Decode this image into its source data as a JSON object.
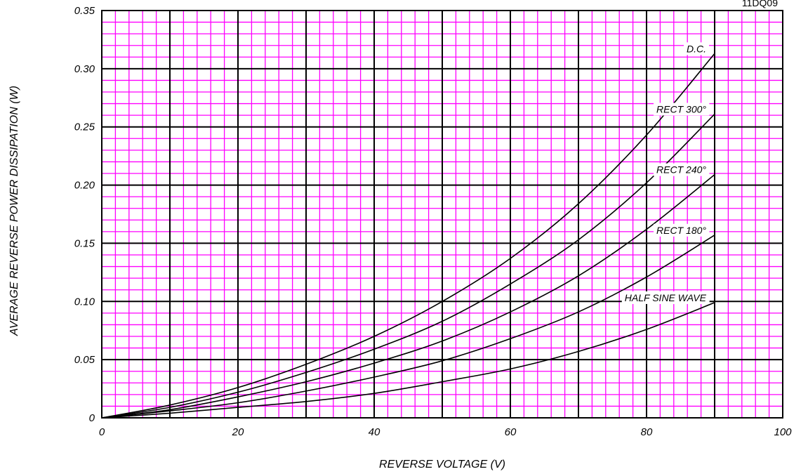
{
  "chart_data": {
    "type": "line",
    "title": "",
    "corner_label": "11DQ09",
    "xlabel": "REVERSE VOLTAGE (V)",
    "ylabel": "AVERAGE REVERSE POWER DISSIPATION (W)",
    "xlim": [
      0,
      100
    ],
    "ylim": [
      0,
      0.35
    ],
    "x_ticks": [
      0,
      20,
      40,
      60,
      80,
      100
    ],
    "x_tick_labels": [
      "0",
      "20",
      "40",
      "60",
      "80",
      "100"
    ],
    "y_ticks": [
      0,
      0.05,
      0.1,
      0.15,
      0.2,
      0.25,
      0.3,
      0.35
    ],
    "y_tick_labels": [
      "0",
      "0.05",
      "0.10",
      "0.15",
      "0.20",
      "0.25",
      "0.30",
      "0.35"
    ],
    "grid": true,
    "colors": {
      "minor_grid": "#ff00ff",
      "major_grid": "#000000",
      "curve": "#000000",
      "background": "#ffffff"
    },
    "series": [
      {
        "name": "D.C.",
        "x": [
          0,
          10,
          20,
          30,
          40,
          50,
          60,
          70,
          80,
          90
        ],
        "values": [
          0,
          0.011,
          0.026,
          0.046,
          0.07,
          0.1,
          0.137,
          0.184,
          0.243,
          0.313
        ]
      },
      {
        "name": "RECT 300°",
        "x": [
          0,
          10,
          20,
          30,
          40,
          50,
          60,
          70,
          80,
          90
        ],
        "values": [
          0,
          0.009,
          0.022,
          0.039,
          0.059,
          0.083,
          0.115,
          0.153,
          0.202,
          0.261
        ]
      },
      {
        "name": "RECT 240°",
        "x": [
          0,
          10,
          20,
          30,
          40,
          50,
          60,
          70,
          80,
          90
        ],
        "values": [
          0,
          0.007,
          0.018,
          0.031,
          0.047,
          0.066,
          0.091,
          0.122,
          0.162,
          0.209
        ]
      },
      {
        "name": "RECT 180°",
        "x": [
          0,
          10,
          20,
          30,
          40,
          50,
          60,
          70,
          80,
          90
        ],
        "values": [
          0,
          0.006,
          0.013,
          0.023,
          0.035,
          0.049,
          0.068,
          0.091,
          0.121,
          0.157
        ]
      },
      {
        "name": "HALF SINE WAVE",
        "x": [
          0,
          10,
          20,
          30,
          40,
          50,
          60,
          70,
          80,
          90
        ],
        "values": [
          0,
          0.004,
          0.009,
          0.014,
          0.021,
          0.031,
          0.042,
          0.057,
          0.076,
          0.099
        ]
      }
    ]
  }
}
